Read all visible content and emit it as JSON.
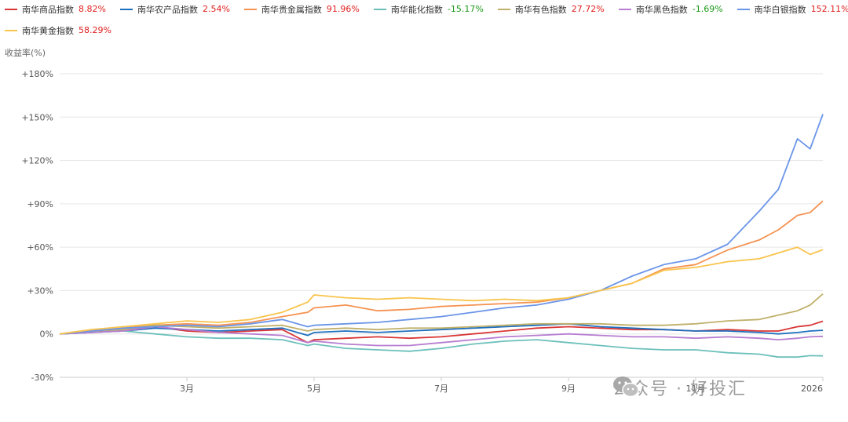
{
  "colors": {
    "series": [
      "#d93636",
      "#1f6fbf",
      "#f59352",
      "#6cc0bb",
      "#c0b06a",
      "#b77dd1",
      "#6b95e8",
      "#f8c44c"
    ],
    "positive": "#e02020",
    "negative": "#1a9a1a",
    "grid": "#e6e6e6",
    "axis": "#555555"
  },
  "legend": [
    [
      {
        "name": "南华商品指数",
        "value": "8.82%",
        "sign": "positive"
      },
      {
        "name": "南华农产品指数",
        "value": "2.54%",
        "sign": "positive"
      },
      {
        "name": "南华贵金属指数",
        "value": "91.96%",
        "sign": "positive"
      },
      {
        "name": "南华能化指数",
        "value": "-15.17%",
        "sign": "negative"
      },
      {
        "name": "南华有色指数",
        "value": "27.72%",
        "sign": "positive"
      },
      {
        "name": "南华黑色指数",
        "value": "-1.69%",
        "sign": "negative"
      },
      {
        "name": "南华白银指数",
        "value": "152.11%",
        "sign": "positive"
      }
    ],
    [
      {
        "name": "南华黄金指数",
        "value": "58.29%",
        "sign": "positive"
      }
    ]
  ],
  "watermark": {
    "icon": "wechat-icon",
    "text": "公众号 · 好投汇"
  },
  "chart_data": {
    "type": "line",
    "ylabel": "收益率(%)",
    "ylim": [
      -30,
      180
    ],
    "yticks": [
      {
        "value": 180,
        "label": "+180%"
      },
      {
        "value": 150,
        "label": "+150%"
      },
      {
        "value": 120,
        "label": "+120%"
      },
      {
        "value": 90,
        "label": "+90%"
      },
      {
        "value": 60,
        "label": "+60%"
      },
      {
        "value": 30,
        "label": "+30%"
      },
      {
        "value": 0,
        "label": "0%"
      },
      {
        "value": -30,
        "label": "-30%"
      }
    ],
    "xlim": [
      0,
      12
    ],
    "xticks": [
      {
        "value": 2,
        "label": "3月"
      },
      {
        "value": 4,
        "label": "5月"
      },
      {
        "value": 6,
        "label": "7月"
      },
      {
        "value": 8,
        "label": "9月"
      },
      {
        "value": 10,
        "label": "11月"
      },
      {
        "value": 12,
        "label": "2026"
      }
    ],
    "grid": true,
    "legend_position": "top-left",
    "x": [
      0,
      0.5,
      1,
      1.5,
      2,
      2.5,
      3,
      3.5,
      3.9,
      4,
      4.5,
      5,
      5.5,
      6,
      6.5,
      7,
      7.5,
      8,
      8.5,
      9,
      9.5,
      10,
      10.5,
      11,
      11.3,
      11.6,
      11.8,
      12
    ],
    "series": [
      {
        "name": "南华商品指数",
        "values": [
          0,
          1,
          3,
          5,
          2,
          1,
          2,
          3,
          -6,
          -4,
          -3,
          -2,
          -3,
          -2,
          0,
          2,
          4,
          5,
          4,
          3,
          3,
          2,
          3,
          2,
          2,
          5,
          6,
          8.8
        ]
      },
      {
        "name": "南华农产品指数",
        "values": [
          0,
          1,
          2,
          4,
          3,
          2,
          3,
          4,
          -1,
          1,
          2,
          1,
          2,
          3,
          4,
          5,
          6,
          7,
          5,
          4,
          3,
          2,
          2,
          1,
          0,
          1,
          2,
          2.5
        ]
      },
      {
        "name": "南华贵金属指数",
        "values": [
          0,
          2,
          4,
          6,
          7,
          6,
          8,
          12,
          15,
          18,
          20,
          16,
          17,
          19,
          20,
          21,
          22,
          25,
          30,
          35,
          45,
          48,
          58,
          65,
          72,
          82,
          84,
          92
        ]
      },
      {
        "name": "南华能化指数",
        "values": [
          0,
          1,
          2,
          0,
          -2,
          -3,
          -3,
          -4,
          -8,
          -7,
          -10,
          -11,
          -12,
          -10,
          -7,
          -5,
          -4,
          -6,
          -8,
          -10,
          -11,
          -11,
          -13,
          -14,
          -16,
          -16,
          -15,
          -15.2
        ]
      },
      {
        "name": "南华有色指数",
        "values": [
          0,
          2,
          3,
          6,
          5,
          4,
          5,
          6,
          2,
          3,
          4,
          3,
          4,
          4,
          5,
          6,
          7,
          7,
          7,
          6,
          6,
          7,
          9,
          10,
          13,
          16,
          20,
          27.7
        ]
      },
      {
        "name": "南华黑色指数",
        "values": [
          0,
          1,
          2,
          5,
          3,
          1,
          0,
          -1,
          -6,
          -5,
          -7,
          -8,
          -8,
          -6,
          -4,
          -2,
          -1,
          0,
          -1,
          -2,
          -2,
          -3,
          -2,
          -3,
          -4,
          -3,
          -2,
          -1.7
        ]
      },
      {
        "name": "南华白银指数",
        "values": [
          0,
          2,
          4,
          5,
          6,
          5,
          7,
          10,
          5,
          6,
          7,
          8,
          10,
          12,
          15,
          18,
          20,
          24,
          30,
          40,
          48,
          52,
          62,
          85,
          100,
          135,
          128,
          152
        ]
      },
      {
        "name": "南华黄金指数",
        "values": [
          0,
          3,
          5,
          7,
          9,
          8,
          10,
          15,
          22,
          27,
          25,
          24,
          25,
          24,
          23,
          24,
          23,
          25,
          30,
          35,
          44,
          46,
          50,
          52,
          56,
          60,
          55,
          58.3
        ]
      }
    ]
  }
}
